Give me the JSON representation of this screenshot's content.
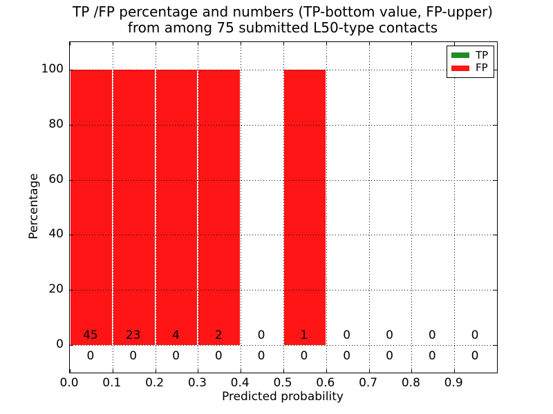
{
  "figure": {
    "title_line1": "TP /FP percentage and numbers (TP-bottom value, FP-upper)",
    "title_line2": "from among 75 submitted L50-type contacts"
  },
  "chart_data": {
    "type": "bar",
    "title": "TP /FP percentage and numbers (TP-bottom value, FP-upper) from among 75 submitted L50-type contacts",
    "xlabel": "Predicted probability",
    "ylabel": "Percentage",
    "xlim": [
      0.0,
      1.0
    ],
    "ylim": [
      -10,
      110
    ],
    "grid": true,
    "grid_style": "dotted",
    "legend_position": "upper right",
    "x_tick_values": [
      0.0,
      0.1,
      0.2,
      0.3,
      0.4,
      0.5,
      0.6,
      0.7,
      0.8,
      0.9
    ],
    "x_tick_labels": [
      "0.0",
      "0.1",
      "0.2",
      "0.3",
      "0.4",
      "0.5",
      "0.6",
      "0.7",
      "0.8",
      "0.9"
    ],
    "y_tick_values": [
      0,
      20,
      40,
      60,
      80,
      100
    ],
    "y_tick_labels": [
      "0",
      "20",
      "40",
      "60",
      "80",
      "100"
    ],
    "bin_width": 0.1,
    "bin_starts": [
      0.0,
      0.1,
      0.2,
      0.3,
      0.4,
      0.5,
      0.6,
      0.7,
      0.8,
      0.9
    ],
    "series": [
      {
        "name": "TP",
        "color": "#228b22",
        "percent": [
          0,
          0,
          0,
          0,
          0,
          0,
          0,
          0,
          0,
          0
        ],
        "counts": [
          0,
          0,
          0,
          0,
          0,
          0,
          0,
          0,
          0,
          0
        ]
      },
      {
        "name": "FP",
        "color": "#ff1515",
        "percent": [
          100,
          100,
          100,
          100,
          0,
          100,
          0,
          0,
          0,
          0
        ],
        "counts": [
          45,
          23,
          4,
          2,
          0,
          1,
          0,
          0,
          0,
          0
        ]
      }
    ]
  }
}
